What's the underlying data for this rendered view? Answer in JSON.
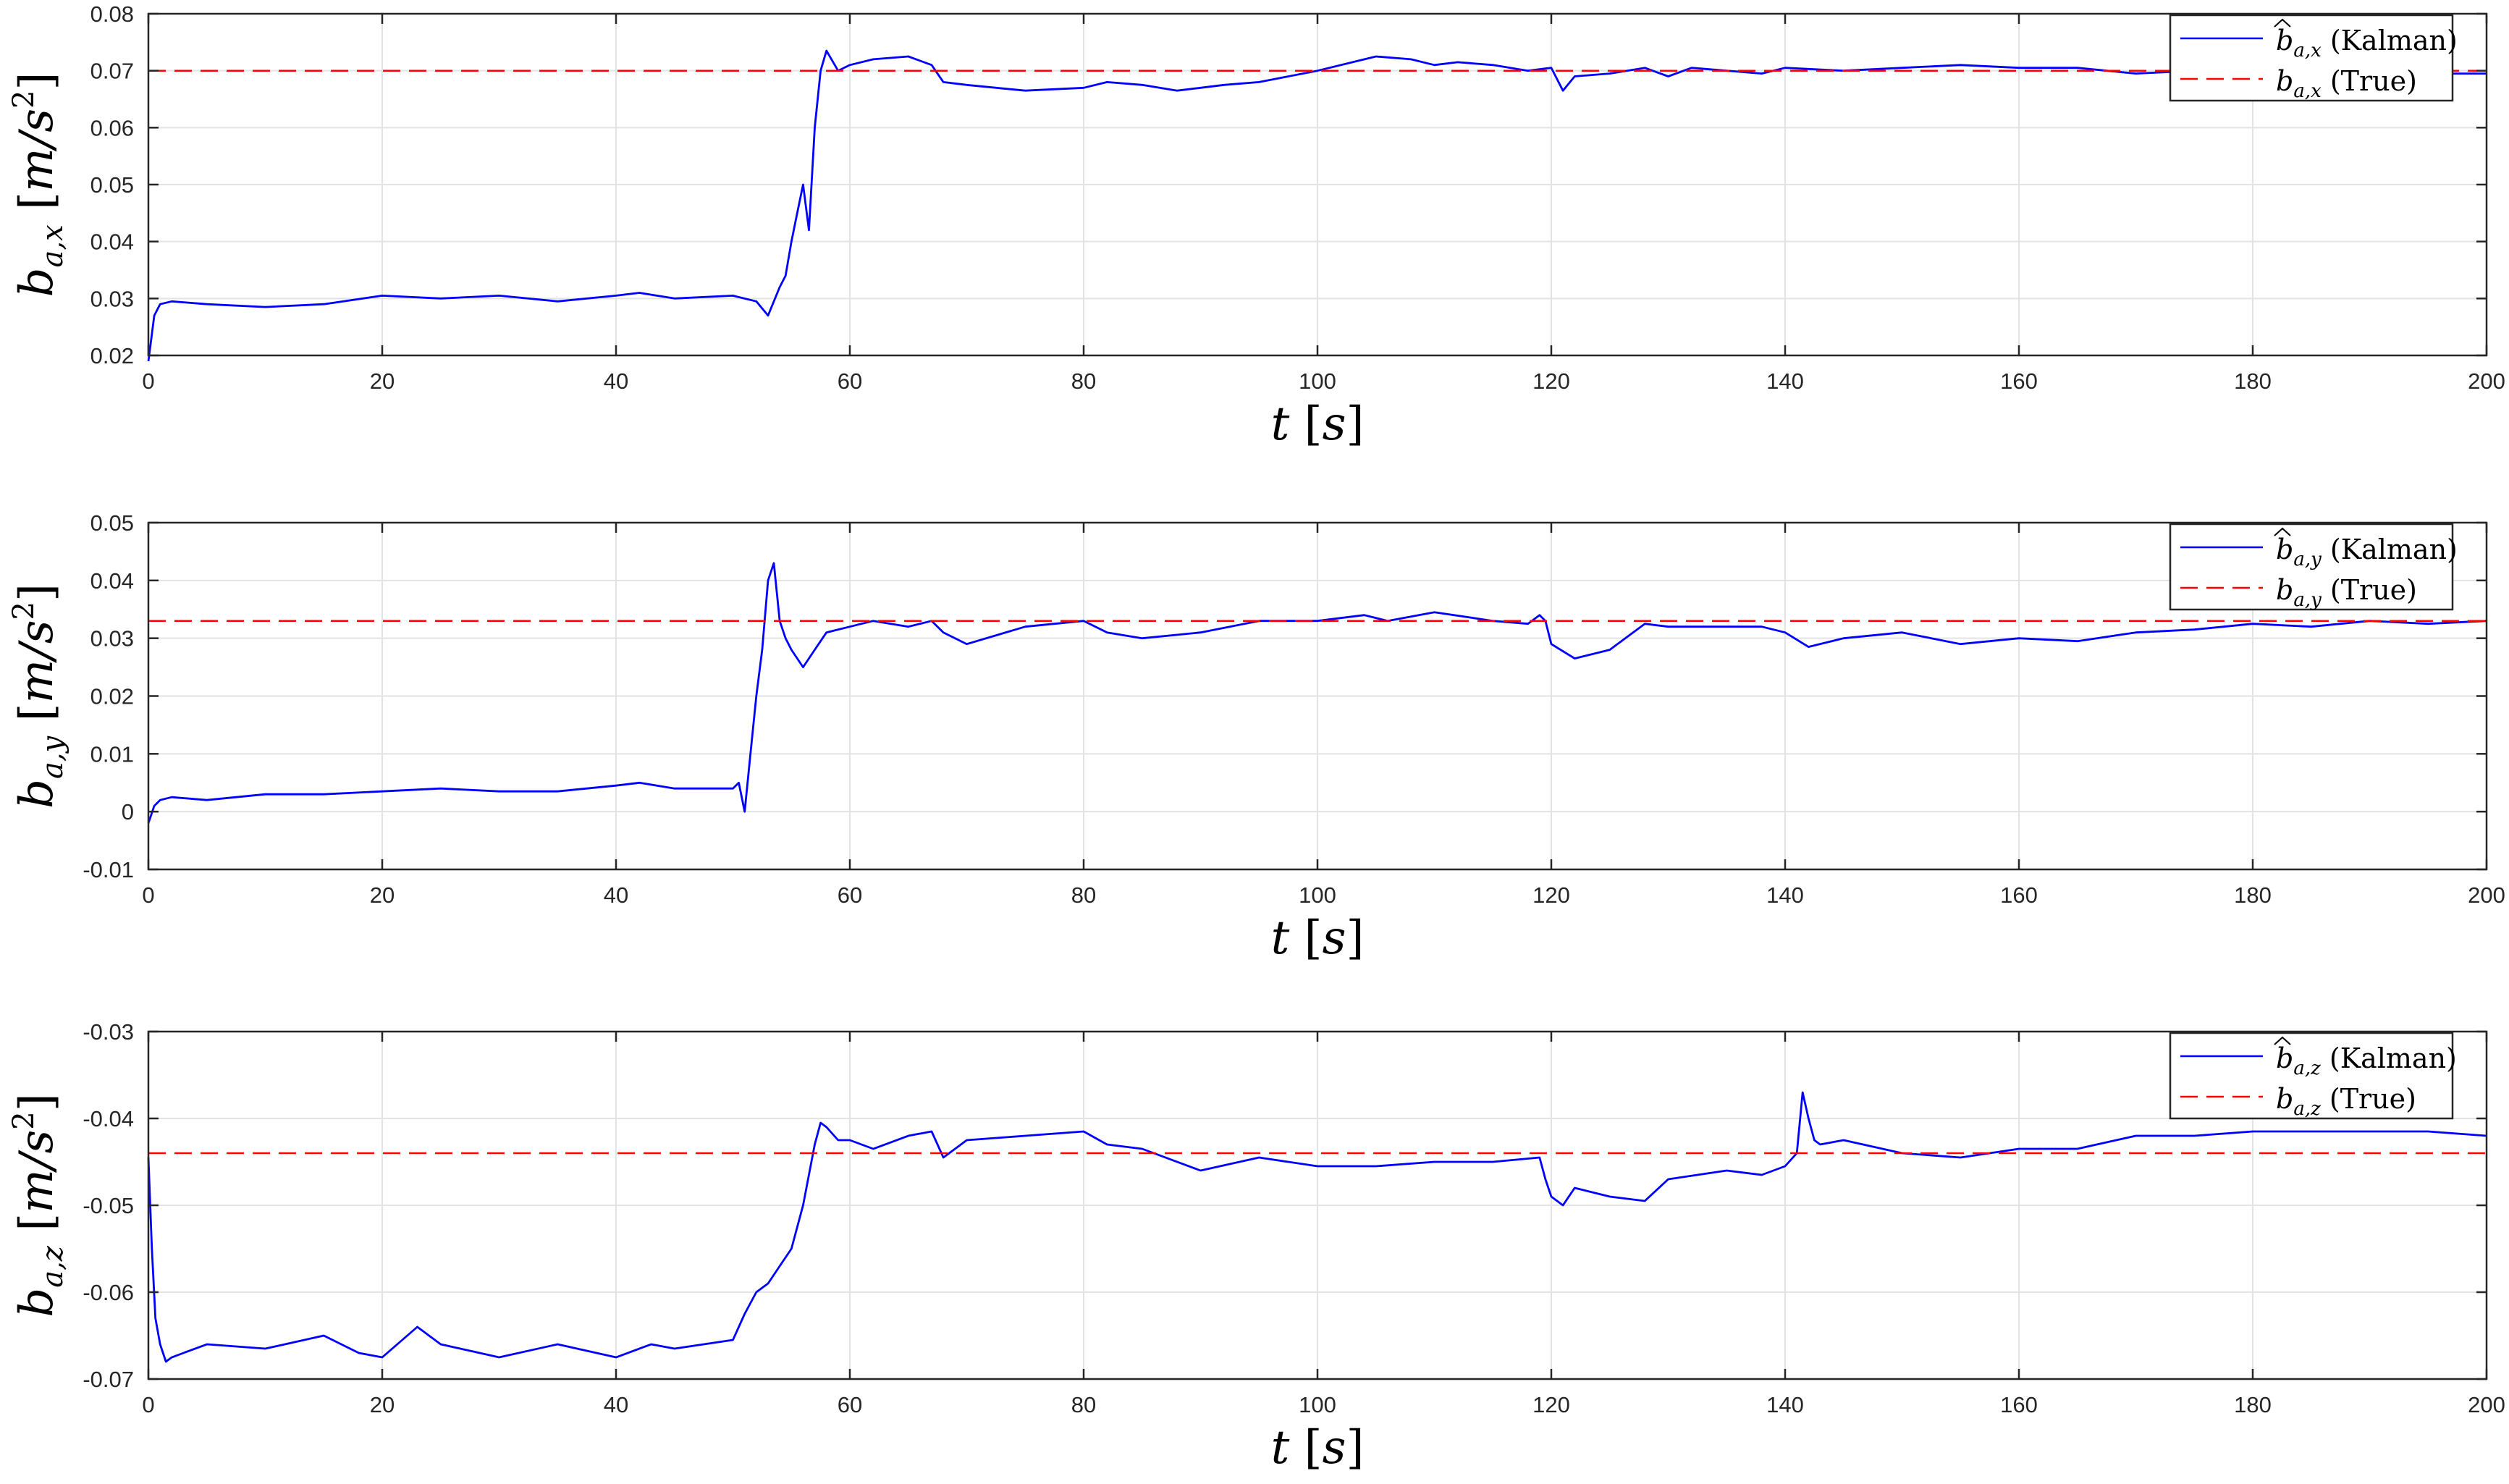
{
  "chart_data": [
    {
      "type": "line",
      "xlabel": "t [s]",
      "ylabel": "b_{a,x} [m/s^2]",
      "xlim": [
        0,
        200
      ],
      "ylim": [
        0.02,
        0.08
      ],
      "xticks": [
        0,
        20,
        40,
        60,
        80,
        100,
        120,
        140,
        160,
        180,
        200
      ],
      "yticks": [
        0.02,
        0.03,
        0.04,
        0.05,
        0.06,
        0.07,
        0.08
      ],
      "xtick_labels": [
        "0",
        "20",
        "40",
        "60",
        "80",
        "100",
        "120",
        "140",
        "160",
        "180",
        "200"
      ],
      "ytick_labels": [
        "0.02",
        "0.03",
        "0.04",
        "0.05",
        "0.06",
        "0.07",
        "0.08"
      ],
      "grid": true,
      "legend_position": "top-right",
      "series": [
        {
          "name": "b̂_{a,x} (Kalman)",
          "style": "solid",
          "color": "#0000ff",
          "x": [
            0,
            0.5,
            1,
            2,
            5,
            10,
            15,
            20,
            25,
            30,
            35,
            40,
            42,
            45,
            50,
            52,
            53,
            54,
            54.5,
            55,
            55.5,
            56,
            56.5,
            57,
            57.5,
            58,
            59,
            60,
            62,
            65,
            67,
            68,
            70,
            75,
            80,
            82,
            85,
            88,
            90,
            92,
            95,
            100,
            103,
            105,
            108,
            110,
            112,
            115,
            118,
            120,
            121,
            122,
            125,
            128,
            130,
            132,
            135,
            138,
            140,
            145,
            150,
            155,
            160,
            165,
            170,
            175,
            180,
            185,
            190,
            195,
            200
          ],
          "y": [
            0.019,
            0.027,
            0.029,
            0.0295,
            0.029,
            0.0285,
            0.029,
            0.0305,
            0.03,
            0.0305,
            0.0295,
            0.0305,
            0.031,
            0.03,
            0.0305,
            0.0295,
            0.027,
            0.032,
            0.034,
            0.04,
            0.045,
            0.05,
            0.042,
            0.06,
            0.07,
            0.0735,
            0.07,
            0.071,
            0.072,
            0.0725,
            0.071,
            0.068,
            0.0675,
            0.0665,
            0.067,
            0.068,
            0.0675,
            0.0665,
            0.067,
            0.0675,
            0.068,
            0.07,
            0.0715,
            0.0725,
            0.072,
            0.071,
            0.0715,
            0.071,
            0.07,
            0.0705,
            0.0665,
            0.069,
            0.0695,
            0.0705,
            0.069,
            0.0705,
            0.07,
            0.0695,
            0.0705,
            0.07,
            0.0705,
            0.071,
            0.0705,
            0.0705,
            0.0695,
            0.07,
            0.0695,
            0.0695,
            0.0695,
            0.0695,
            0.0695
          ]
        },
        {
          "name": "b_{a,x} (True)",
          "style": "dashed",
          "color": "#ff0000",
          "x": [
            0,
            200
          ],
          "y": [
            0.07,
            0.07
          ]
        }
      ]
    },
    {
      "type": "line",
      "xlabel": "t [s]",
      "ylabel": "b_{a,y} [m/s^2]",
      "xlim": [
        0,
        200
      ],
      "ylim": [
        -0.01,
        0.05
      ],
      "xticks": [
        0,
        20,
        40,
        60,
        80,
        100,
        120,
        140,
        160,
        180,
        200
      ],
      "yticks": [
        -0.01,
        0,
        0.01,
        0.02,
        0.03,
        0.04,
        0.05
      ],
      "xtick_labels": [
        "0",
        "20",
        "40",
        "60",
        "80",
        "100",
        "120",
        "140",
        "160",
        "180",
        "200"
      ],
      "ytick_labels": [
        "-0.01",
        "0",
        "0.01",
        "0.02",
        "0.03",
        "0.04",
        "0.05"
      ],
      "grid": true,
      "legend_position": "top-right",
      "series": [
        {
          "name": "b̂_{a,y} (Kalman)",
          "style": "solid",
          "color": "#0000ff",
          "x": [
            0,
            0.5,
            1,
            2,
            5,
            10,
            15,
            20,
            25,
            30,
            35,
            40,
            42,
            45,
            50,
            50.5,
            51,
            51.5,
            52,
            52.5,
            53,
            53.5,
            54,
            54.5,
            55,
            56,
            57,
            58,
            60,
            62,
            65,
            67,
            68,
            70,
            75,
            80,
            82,
            85,
            90,
            95,
            100,
            104,
            106,
            110,
            115,
            118,
            119,
            119.5,
            120,
            122,
            125,
            128,
            130,
            135,
            138,
            140,
            142,
            145,
            150,
            155,
            160,
            165,
            170,
            175,
            180,
            185,
            190,
            195,
            200
          ],
          "y": [
            -0.002,
            0.001,
            0.002,
            0.0025,
            0.002,
            0.003,
            0.003,
            0.0035,
            0.004,
            0.0035,
            0.0035,
            0.0045,
            0.005,
            0.004,
            0.004,
            0.005,
            0.0,
            0.01,
            0.02,
            0.028,
            0.04,
            0.043,
            0.033,
            0.03,
            0.028,
            0.025,
            0.028,
            0.031,
            0.032,
            0.033,
            0.032,
            0.033,
            0.031,
            0.029,
            0.032,
            0.033,
            0.031,
            0.03,
            0.031,
            0.033,
            0.033,
            0.034,
            0.033,
            0.0345,
            0.033,
            0.0325,
            0.034,
            0.033,
            0.029,
            0.0265,
            0.028,
            0.0325,
            0.032,
            0.032,
            0.032,
            0.031,
            0.0285,
            0.03,
            0.031,
            0.029,
            0.03,
            0.0295,
            0.031,
            0.0315,
            0.0325,
            0.032,
            0.033,
            0.0325,
            0.033
          ]
        },
        {
          "name": "b_{a,y} (True)",
          "style": "dashed",
          "color": "#ff0000",
          "x": [
            0,
            200
          ],
          "y": [
            0.033,
            0.033
          ]
        }
      ]
    },
    {
      "type": "line",
      "xlabel": "t [s]",
      "ylabel": "b_{a,z} [m/s^2]",
      "xlim": [
        0,
        200
      ],
      "ylim": [
        -0.07,
        -0.03
      ],
      "xticks": [
        0,
        20,
        40,
        60,
        80,
        100,
        120,
        140,
        160,
        180,
        200
      ],
      "yticks": [
        -0.07,
        -0.06,
        -0.05,
        -0.04,
        -0.03
      ],
      "xtick_labels": [
        "0",
        "20",
        "40",
        "60",
        "80",
        "100",
        "120",
        "140",
        "160",
        "180",
        "200"
      ],
      "ytick_labels": [
        "-0.07",
        "-0.06",
        "-0.05",
        "-0.04",
        "-0.03"
      ],
      "grid": true,
      "legend_position": "top-right",
      "series": [
        {
          "name": "b̂_{a,z} (Kalman)",
          "style": "solid",
          "color": "#0000ff",
          "x": [
            0,
            0.3,
            0.6,
            1,
            1.5,
            2,
            5,
            10,
            15,
            18,
            20,
            23,
            25,
            30,
            35,
            40,
            43,
            45,
            50,
            51,
            52,
            53,
            54,
            55,
            56,
            57,
            57.5,
            58,
            59,
            60,
            62,
            65,
            67,
            68,
            70,
            75,
            80,
            82,
            85,
            90,
            95,
            100,
            105,
            110,
            115,
            119,
            119.5,
            120,
            121,
            122,
            125,
            128,
            130,
            135,
            138,
            140,
            141,
            141.5,
            142,
            142.5,
            143,
            145,
            150,
            155,
            160,
            165,
            170,
            175,
            180,
            185,
            190,
            195,
            200
          ],
          "y": [
            -0.0445,
            -0.055,
            -0.063,
            -0.066,
            -0.068,
            -0.0675,
            -0.066,
            -0.0665,
            -0.065,
            -0.067,
            -0.0675,
            -0.064,
            -0.066,
            -0.0675,
            -0.066,
            -0.0675,
            -0.066,
            -0.0665,
            -0.0655,
            -0.0625,
            -0.06,
            -0.059,
            -0.057,
            -0.055,
            -0.05,
            -0.043,
            -0.0405,
            -0.041,
            -0.0425,
            -0.0425,
            -0.0435,
            -0.042,
            -0.0415,
            -0.0445,
            -0.0425,
            -0.042,
            -0.0415,
            -0.043,
            -0.0435,
            -0.046,
            -0.0445,
            -0.0455,
            -0.0455,
            -0.045,
            -0.045,
            -0.0445,
            -0.047,
            -0.049,
            -0.05,
            -0.048,
            -0.049,
            -0.0495,
            -0.047,
            -0.046,
            -0.0465,
            -0.0455,
            -0.044,
            -0.037,
            -0.04,
            -0.0425,
            -0.043,
            -0.0425,
            -0.044,
            -0.0445,
            -0.0435,
            -0.0435,
            -0.042,
            -0.042,
            -0.0415,
            -0.0415,
            -0.0415,
            -0.0415,
            -0.042
          ]
        },
        {
          "name": "b_{a,z} (True)",
          "style": "dashed",
          "color": "#ff0000",
          "x": [
            0,
            200
          ],
          "y": [
            -0.044,
            -0.044
          ]
        }
      ]
    }
  ],
  "legend": [
    {
      "kalman": {
        "base": "b",
        "sub": "a,x",
        "suffix": "(Kalman)"
      },
      "true": {
        "base": "b",
        "sub": "a,x",
        "suffix": "(True)"
      }
    },
    {
      "kalman": {
        "base": "b",
        "sub": "a,y",
        "suffix": "(Kalman)"
      },
      "true": {
        "base": "b",
        "sub": "a,y",
        "suffix": "(True)"
      }
    },
    {
      "kalman": {
        "base": "b",
        "sub": "a,z",
        "suffix": "(Kalman)"
      },
      "true": {
        "base": "b",
        "sub": "a,z",
        "suffix": "(True)"
      }
    }
  ],
  "labels": {
    "x": {
      "var": "t",
      "unit": "s"
    },
    "y": [
      {
        "base": "b",
        "sub": "a,x",
        "unit_var": "m/s",
        "unit_sup": "2"
      },
      {
        "base": "b",
        "sub": "a,y",
        "unit_var": "m/s",
        "unit_sup": "2"
      },
      {
        "base": "b",
        "sub": "a,z",
        "unit_var": "m/s",
        "unit_sup": "2"
      }
    ]
  },
  "colors": {
    "kalman": "#0000ff",
    "true": "#ff0000",
    "grid": "#e3e3e3",
    "axes": "#262626",
    "background": "#ffffff"
  }
}
